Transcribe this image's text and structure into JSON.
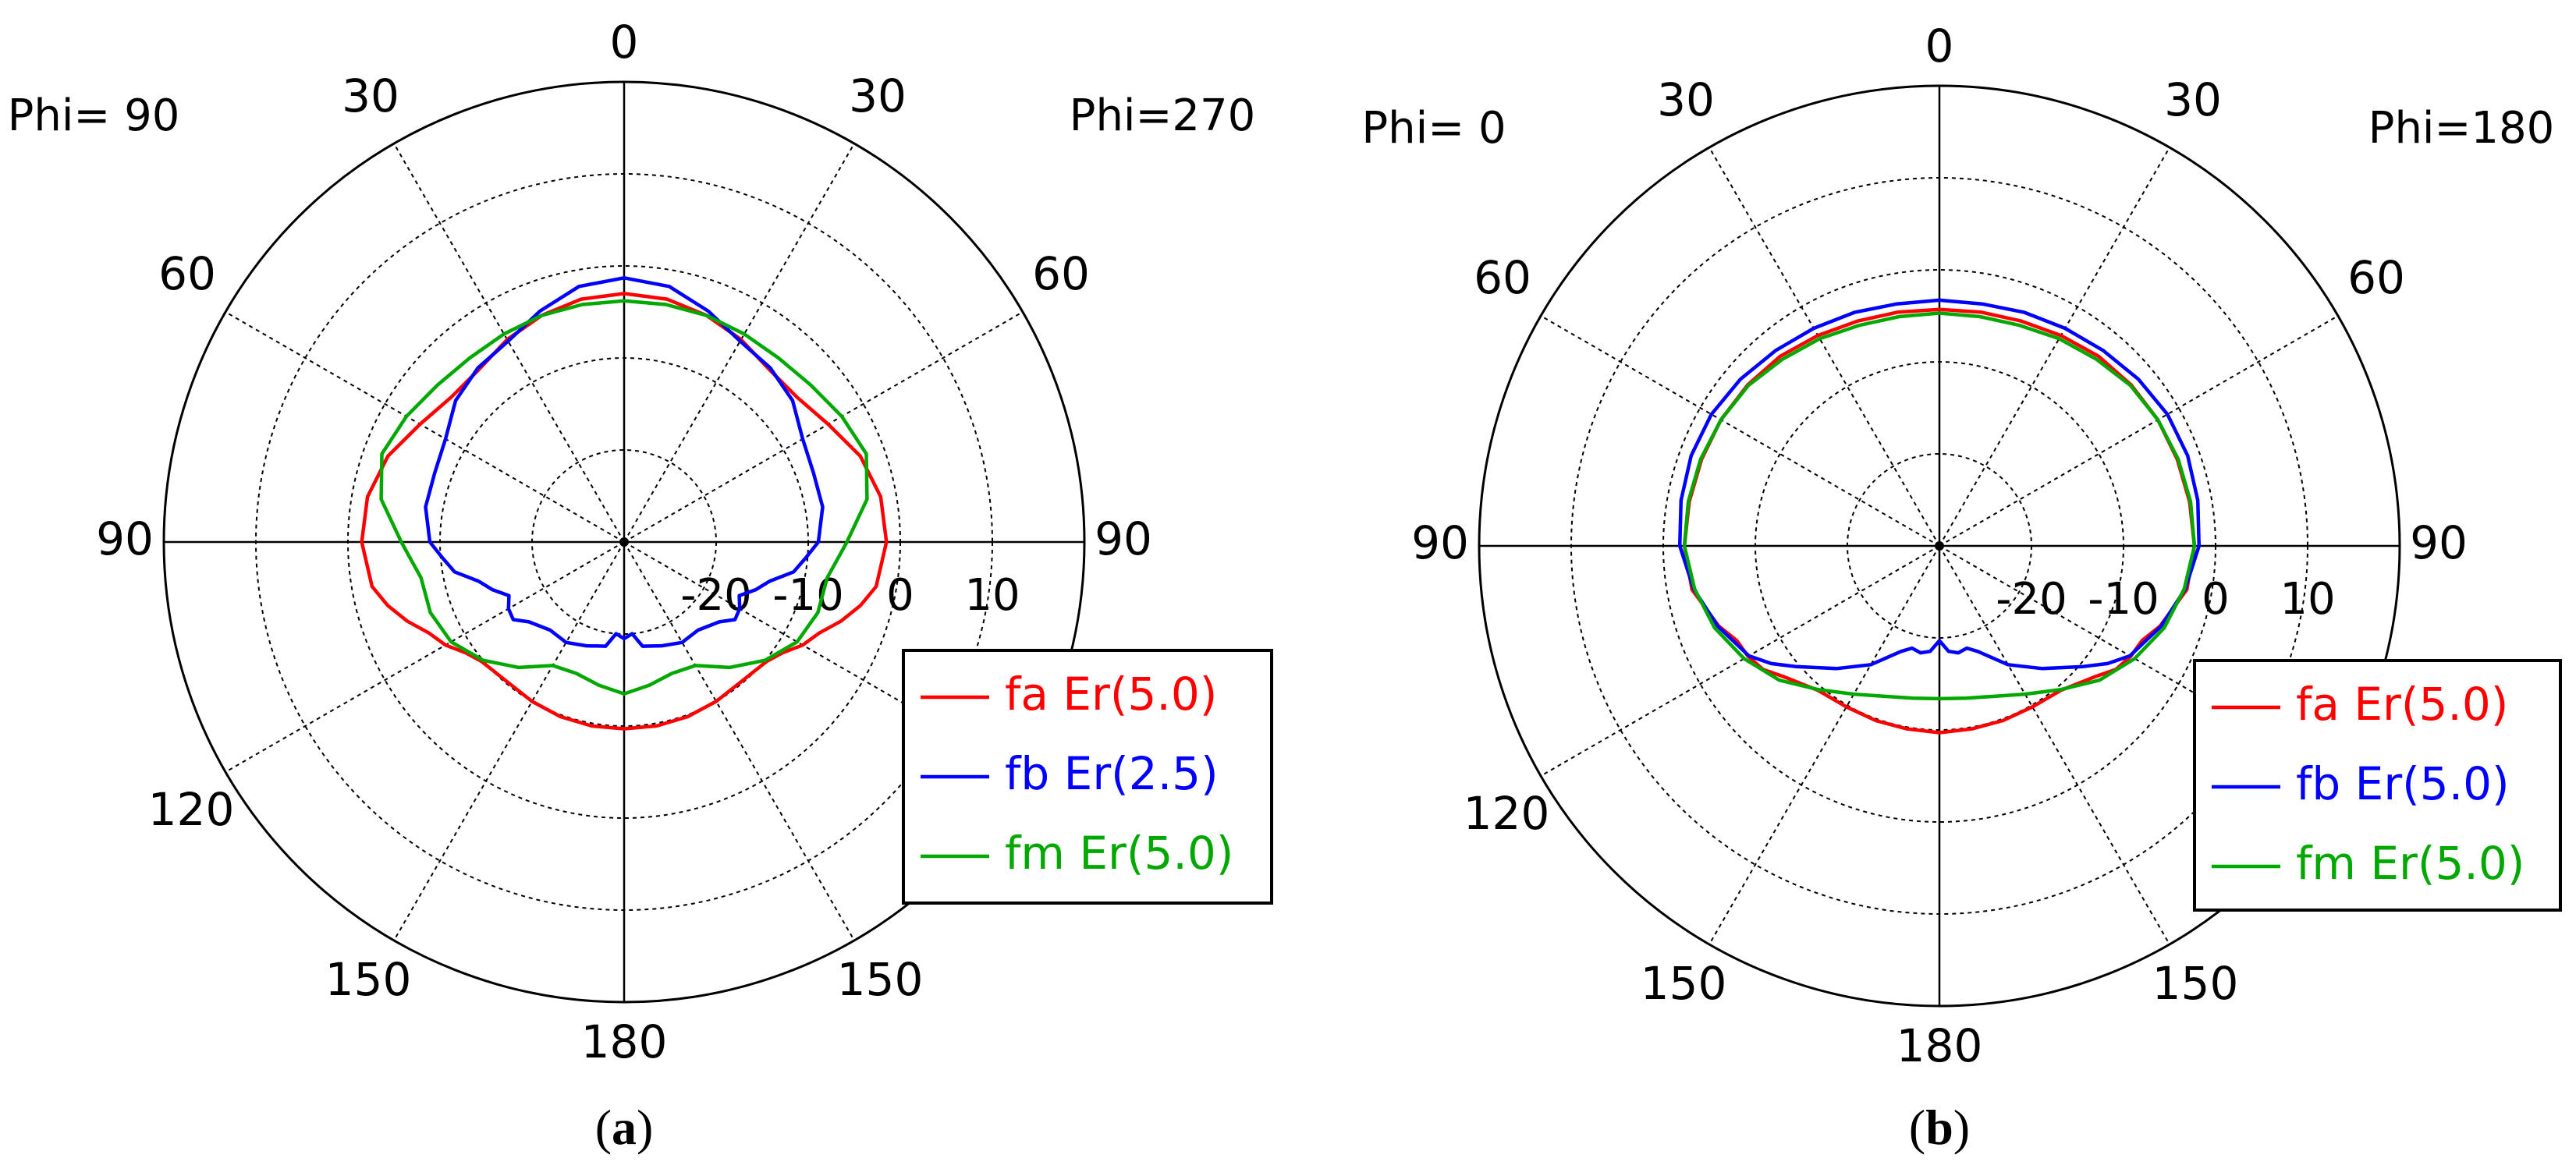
{
  "chart_data": [
    {
      "type": "polar-line",
      "panel_label": "a",
      "corner_labels": {
        "left": "Phi= 90",
        "right": "Phi=270"
      },
      "angle_tick_labels": [
        "0",
        "30",
        "60",
        "90",
        "120",
        "150",
        "180",
        "150",
        "120",
        "90",
        "60",
        "30"
      ],
      "radial_tick_labels": [
        "-20",
        "-10",
        "0",
        "10"
      ],
      "radial_range": [
        -30,
        20
      ],
      "radial_ticks": [
        -20,
        -10,
        0,
        10
      ],
      "grid": true,
      "legend_position": "bottom-right",
      "series": [
        {
          "name": "fa Er(5.0)",
          "color": "#ff0000",
          "theta": [
            0,
            10,
            20,
            30,
            40,
            50,
            60,
            70,
            80,
            90,
            100,
            105,
            110,
            115,
            120,
            125,
            130,
            140,
            150,
            160,
            170,
            180,
            190,
            200,
            210,
            220,
            230,
            235,
            240,
            245,
            250,
            255,
            260,
            270,
            280,
            290,
            300,
            310,
            320,
            330,
            340,
            350,
            360
          ],
          "r": [
            -3.0,
            -3.2,
            -3.8,
            -4.6,
            -5.5,
            -5.5,
            -4.4,
            -2.7,
            -1.7,
            -1.5,
            -2.2,
            -3.4,
            -4.9,
            -6.6,
            -7.6,
            -9.0,
            -9.8,
            -10.2,
            -10.0,
            -9.8,
            -9.7,
            -9.7,
            -9.7,
            -9.8,
            -10.0,
            -10.2,
            -9.8,
            -9.0,
            -7.6,
            -6.6,
            -4.9,
            -3.4,
            -2.2,
            -1.5,
            -1.7,
            -2.7,
            -4.4,
            -5.5,
            -5.5,
            -4.6,
            -3.8,
            -3.2,
            -3.0
          ]
        },
        {
          "name": "fb Er(2.5)",
          "color": "#0000ff",
          "theta": [
            0,
            10,
            20,
            30,
            40,
            50,
            60,
            70,
            80,
            90,
            95,
            100,
            105,
            110,
            115,
            120,
            125,
            130,
            140,
            150,
            160,
            170,
            175,
            180,
            185,
            190,
            200,
            210,
            220,
            230,
            235,
            240,
            245,
            250,
            255,
            260,
            265,
            270,
            280,
            290,
            300,
            310,
            320,
            330,
            340,
            350,
            360
          ],
          "r": [
            -1.3,
            -1.8,
            -3.3,
            -4.8,
            -5.3,
            -6.1,
            -7.6,
            -8.1,
            -8.1,
            -8.9,
            -10.2,
            -11.3,
            -13.6,
            -14.8,
            -16.2,
            -15.5,
            -15.3,
            -16.5,
            -17.5,
            -17.4,
            -18.0,
            -18.5,
            -20.0,
            -19.5,
            -20.0,
            -18.5,
            -18.0,
            -17.4,
            -17.5,
            -16.5,
            -15.3,
            -15.5,
            -16.2,
            -14.8,
            -13.6,
            -11.3,
            -10.2,
            -8.9,
            -8.1,
            -8.1,
            -7.6,
            -6.1,
            -5.3,
            -4.8,
            -3.3,
            -1.8,
            -1.3
          ]
        },
        {
          "name": "fm Er(5.0)",
          "color": "#00a800",
          "theta": [
            0,
            10,
            20,
            30,
            40,
            50,
            60,
            70,
            80,
            90,
            100,
            110,
            120,
            130,
            140,
            150,
            160,
            170,
            180,
            190,
            200,
            210,
            220,
            230,
            240,
            250,
            260,
            270,
            280,
            290,
            300,
            310,
            320,
            330,
            340,
            350,
            360
          ],
          "r": [
            -3.8,
            -3.8,
            -3.8,
            -3.9,
            -3.9,
            -3.5,
            -2.7,
            -2.0,
            -3.2,
            -5.8,
            -7.6,
            -7.6,
            -8.3,
            -10.0,
            -12.2,
            -14.5,
            -14.8,
            -14.2,
            -13.5,
            -14.2,
            -14.8,
            -14.5,
            -12.2,
            -10.0,
            -8.3,
            -7.6,
            -7.6,
            -5.8,
            -3.2,
            -2.0,
            -2.7,
            -3.5,
            -3.9,
            -3.9,
            -3.8,
            -3.8,
            -3.8
          ]
        }
      ]
    },
    {
      "type": "polar-line",
      "panel_label": "b",
      "corner_labels": {
        "left": "Phi=  0",
        "right": "Phi=180"
      },
      "angle_tick_labels": [
        "0",
        "30",
        "60",
        "90",
        "120",
        "150",
        "180",
        "150",
        "120",
        "90",
        "60",
        "30"
      ],
      "radial_tick_labels": [
        "-20",
        "-10",
        "0",
        "10"
      ],
      "radial_range": [
        -30,
        20
      ],
      "radial_ticks": [
        -20,
        -10,
        0,
        10
      ],
      "grid": true,
      "legend_position": "bottom-right",
      "series": [
        {
          "name": "fa Er(5.0)",
          "color": "#ff0000",
          "theta": [
            0,
            10,
            20,
            30,
            40,
            50,
            60,
            70,
            80,
            90,
            100,
            110,
            115,
            120,
            125,
            130,
            140,
            150,
            160,
            170,
            180,
            190,
            200,
            210,
            220,
            230,
            235,
            240,
            245,
            250,
            260,
            270,
            280,
            290,
            300,
            310,
            320,
            330,
            340,
            350,
            360
          ],
          "r": [
            -4.3,
            -4.2,
            -4.0,
            -3.6,
            -3.1,
            -2.8,
            -2.6,
            -2.5,
            -2.4,
            -2.3,
            -2.7,
            -4.5,
            -5.7,
            -6.0,
            -6.6,
            -7.9,
            -9.5,
            -9.8,
            -9.8,
            -9.8,
            -9.7,
            -9.8,
            -9.8,
            -9.8,
            -9.5,
            -7.9,
            -6.6,
            -6.0,
            -5.7,
            -4.5,
            -2.7,
            -2.3,
            -2.4,
            -2.5,
            -2.6,
            -2.8,
            -3.1,
            -3.6,
            -4.0,
            -4.2,
            -4.3
          ]
        },
        {
          "name": "fb Er(5.0)",
          "color": "#0000ff",
          "theta": [
            0,
            10,
            20,
            30,
            40,
            50,
            60,
            70,
            80,
            90,
            100,
            110,
            120,
            125,
            130,
            140,
            150,
            160,
            165,
            170,
            175,
            180,
            185,
            190,
            195,
            200,
            210,
            220,
            230,
            235,
            240,
            250,
            260,
            270,
            280,
            290,
            300,
            310,
            320,
            330,
            340,
            350,
            360
          ],
          "r": [
            -3.3,
            -3.3,
            -3.0,
            -2.7,
            -2.3,
            -1.8,
            -1.4,
            -1.3,
            -1.5,
            -1.8,
            -2.9,
            -4.4,
            -6.1,
            -7.7,
            -9.6,
            -12.6,
            -15.1,
            -17.8,
            -18.5,
            -18.2,
            -18.5,
            -19.7,
            -18.5,
            -18.2,
            -18.5,
            -17.8,
            -15.1,
            -12.6,
            -9.6,
            -7.7,
            -6.1,
            -4.4,
            -2.9,
            -1.8,
            -1.5,
            -1.3,
            -1.4,
            -1.8,
            -2.3,
            -2.7,
            -3.0,
            -3.3,
            -3.3
          ]
        },
        {
          "name": "fm Er(5.0)",
          "color": "#00a800",
          "theta": [
            0,
            10,
            20,
            30,
            40,
            50,
            60,
            70,
            80,
            90,
            100,
            110,
            120,
            130,
            140,
            150,
            160,
            170,
            180,
            190,
            200,
            210,
            220,
            230,
            240,
            250,
            260,
            270,
            280,
            290,
            300,
            310,
            320,
            330,
            340,
            350,
            360
          ],
          "r": [
            -4.7,
            -4.7,
            -4.5,
            -4.0,
            -3.5,
            -2.9,
            -2.6,
            -2.4,
            -2.3,
            -2.3,
            -3.0,
            -4.0,
            -5.5,
            -7.3,
            -9.6,
            -11.4,
            -12.6,
            -13.2,
            -13.4,
            -13.2,
            -12.6,
            -11.4,
            -9.6,
            -7.3,
            -5.5,
            -4.0,
            -3.0,
            -2.3,
            -2.3,
            -2.4,
            -2.6,
            -2.9,
            -3.5,
            -4.0,
            -4.5,
            -4.7,
            -4.7
          ]
        }
      ]
    }
  ]
}
